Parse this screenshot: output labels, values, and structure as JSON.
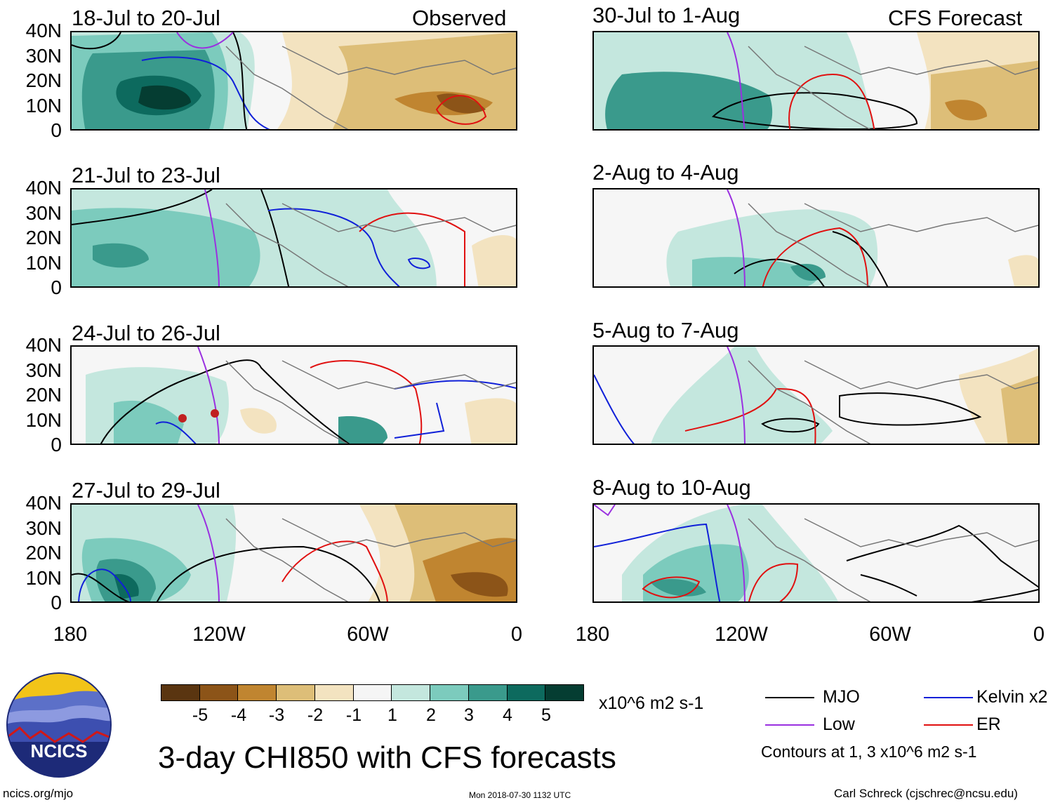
{
  "figure": {
    "main_title": "3-day CHI850 with CFS forecasts",
    "left_column_label": "Observed",
    "right_column_label": "CFS Forecast",
    "site_url": "ncics.org/mjo",
    "timestamp": "Mon 2018-07-30 1132 UTC",
    "author": "Carl Schreck (cjschrec@ncsu.edu)",
    "logo_text": "NCICS"
  },
  "chart_data": {
    "type": "map",
    "variable": "CHI850 (velocity potential, 850 hPa) anomaly",
    "units": "x10^6 m2 s-1",
    "panels": [
      {
        "title": "18-Jul to 20-Jul",
        "column": "Observed"
      },
      {
        "title": "21-Jul to 23-Jul",
        "column": "Observed"
      },
      {
        "title": "24-Jul to 26-Jul",
        "column": "Observed"
      },
      {
        "title": "27-Jul to 29-Jul",
        "column": "Observed"
      },
      {
        "title": "30-Jul to 1-Aug",
        "column": "CFS Forecast"
      },
      {
        "title": "2-Aug to 4-Aug",
        "column": "CFS Forecast"
      },
      {
        "title": "5-Aug to 7-Aug",
        "column": "CFS Forecast"
      },
      {
        "title": "8-Aug to 10-Aug",
        "column": "CFS Forecast"
      }
    ],
    "y_ticks": [
      "40N",
      "30N",
      "20N",
      "10N",
      "0"
    ],
    "x_ticks": [
      "180",
      "120W",
      "60W",
      "0"
    ],
    "colorbar": {
      "labels": [
        "-5",
        "-4",
        "-3",
        "-2",
        "-1",
        "1",
        "2",
        "3",
        "4",
        "5"
      ],
      "colors": [
        "#5a3510",
        "#8c5418",
        "#c08530",
        "#ddbe78",
        "#f3e3c0",
        "#f5f5f5",
        "#c4e7de",
        "#7ccbbd",
        "#3a9a8c",
        "#0d6a5e",
        "#053d32"
      ]
    },
    "legend": [
      {
        "label": "MJO",
        "color": "#000000"
      },
      {
        "label": "Kelvin x2",
        "color": "#1020d8"
      },
      {
        "label": "Low",
        "color": "#9a30e0"
      },
      {
        "label": "ER",
        "color": "#e01010"
      }
    ],
    "contour_note": "Contours at 1, 3 x10^6 m2 s-1"
  }
}
